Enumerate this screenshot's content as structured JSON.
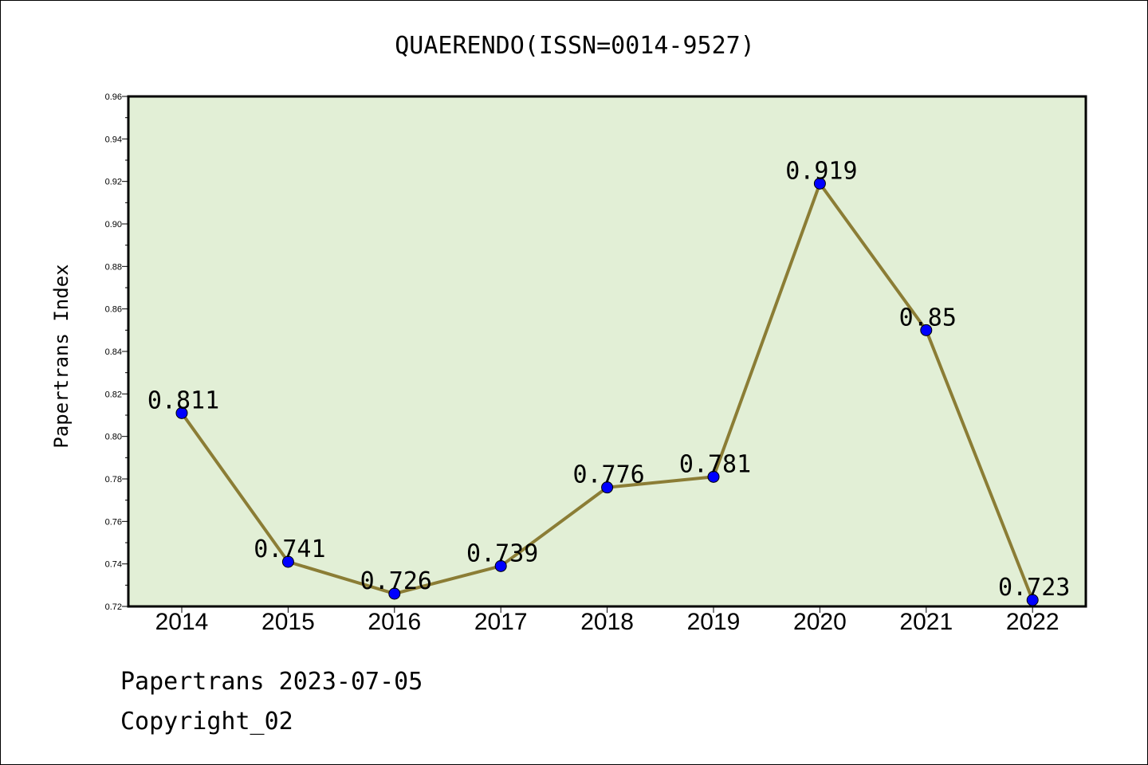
{
  "chart_data": {
    "type": "line",
    "title": "QUAERENDO(ISSN=0014-9527)",
    "xlabel": "",
    "ylabel": "Papertrans Index",
    "categories": [
      "2014",
      "2015",
      "2016",
      "2017",
      "2018",
      "2019",
      "2020",
      "2021",
      "2022"
    ],
    "series": [
      {
        "values": [
          0.811,
          0.741,
          0.726,
          0.739,
          0.776,
          0.781,
          0.919,
          0.85,
          0.723
        ],
        "data_labels": [
          "0.811",
          "0.741",
          "0.726",
          "0.739",
          "0.776",
          "0.781",
          "0.919",
          "0.85",
          "0.723"
        ],
        "line_color": "#8b7d35",
        "marker_color": "#0000ff"
      }
    ],
    "ylim": [
      0.72,
      0.96
    ],
    "yticks": [
      "0.72",
      "0.74",
      "0.76",
      "0.78",
      "0.80",
      "0.82",
      "0.84",
      "0.86",
      "0.88",
      "0.90",
      "0.92",
      "0.94",
      "0.96"
    ],
    "grid": false,
    "plot_background": "#e2efd6"
  },
  "footer": {
    "date_line": "Papertrans 2023-07-05",
    "copyright_line": "Copyright_02"
  }
}
